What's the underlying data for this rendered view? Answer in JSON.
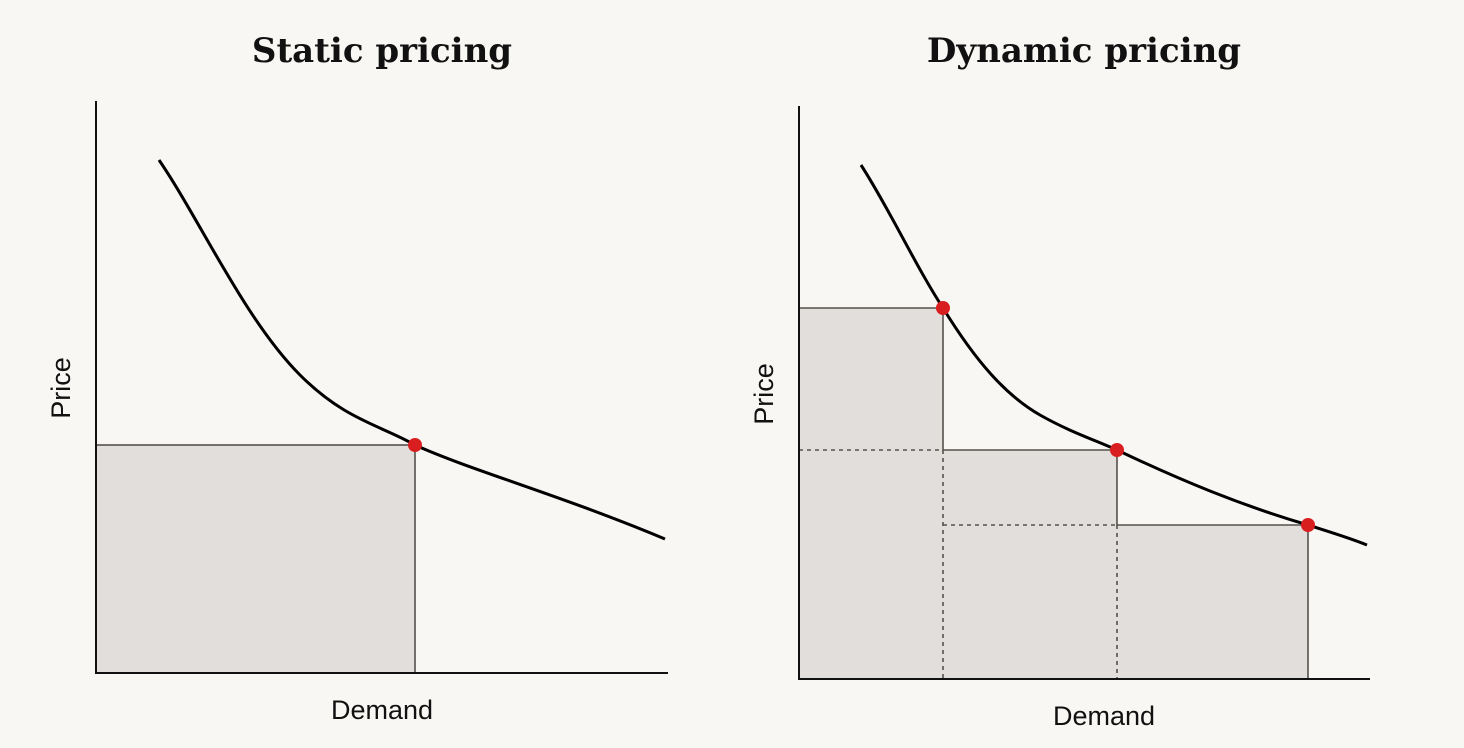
{
  "colors": {
    "background": "#f9f7f4",
    "revenue_area": "#e1dedb",
    "curve": "#000000",
    "price_point": "#d81e1e"
  },
  "panels": [
    {
      "title": "Static pricing",
      "xlabel": "Demand",
      "ylabel": "Price",
      "price_points": 1
    },
    {
      "title": "Dynamic pricing",
      "xlabel": "Demand",
      "ylabel": "Price",
      "price_points": 3
    }
  ]
}
